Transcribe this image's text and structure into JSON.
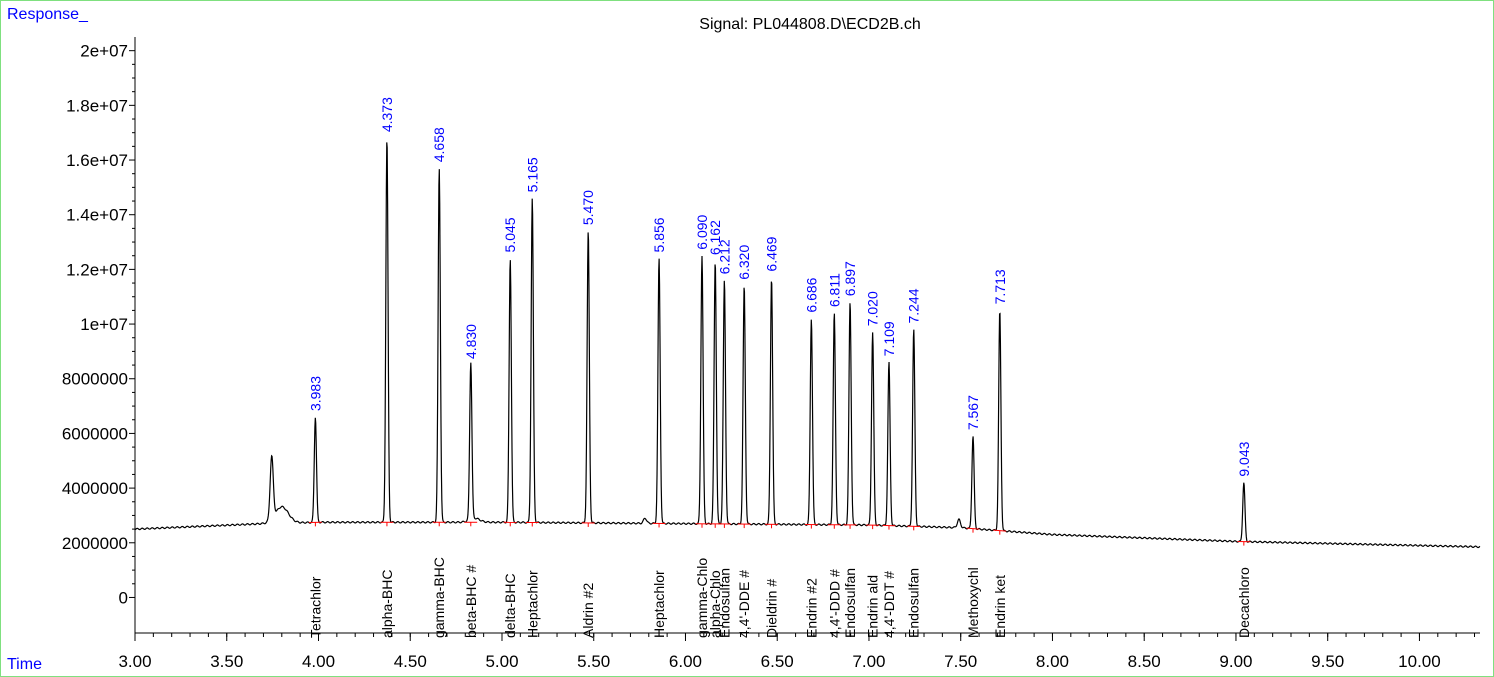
{
  "chart_data": {
    "type": "line",
    "title": "Signal: PL044808.D\\ECD2B.ch",
    "ylabel": "Response_",
    "xlabel": "Time",
    "xlim": [
      3.0,
      10.33
    ],
    "ylim": [
      -1300000,
      20500000
    ],
    "x_ticks": [
      "3.00",
      "3.50",
      "4.00",
      "4.50",
      "5.00",
      "5.50",
      "6.00",
      "6.50",
      "7.00",
      "7.50",
      "8.00",
      "8.50",
      "9.00",
      "9.50",
      "10.00"
    ],
    "y_ticks": [
      "0",
      "2000000",
      "4000000",
      "6000000",
      "8000000",
      "1e+07",
      "1.2e+07",
      "1.4e+07",
      "1.6e+07",
      "1.8e+07",
      "2e+07"
    ],
    "baseline": [
      [
        3.0,
        2500000
      ],
      [
        3.7,
        2700000
      ],
      [
        4.0,
        2750000
      ],
      [
        5.0,
        2750000
      ],
      [
        6.0,
        2700000
      ],
      [
        7.0,
        2650000
      ],
      [
        7.5,
        2550000
      ],
      [
        8.0,
        2300000
      ],
      [
        9.0,
        2050000
      ],
      [
        10.33,
        1850000
      ]
    ],
    "peaks": [
      {
        "rt": "3.983",
        "x": 3.983,
        "height": 6600000,
        "compound": "Tetrachlor"
      },
      {
        "rt": "4.373",
        "x": 4.373,
        "height": 16800000,
        "compound": "alpha-BHC"
      },
      {
        "rt": "4.658",
        "x": 4.658,
        "height": 15700000,
        "compound": "gamma-BHC"
      },
      {
        "rt": "4.830",
        "x": 4.83,
        "height": 8500000,
        "compound": "beta-BHC #"
      },
      {
        "rt": "5.045",
        "x": 5.045,
        "height": 12400000,
        "compound": "delta-BHC"
      },
      {
        "rt": "5.165",
        "x": 5.165,
        "height": 14600000,
        "compound": "Heptachlor"
      },
      {
        "rt": "5.470",
        "x": 5.47,
        "height": 13400000,
        "compound": "Aldrin #2"
      },
      {
        "rt": "5.856",
        "x": 5.856,
        "height": 12400000,
        "compound": "Heptachlor"
      },
      {
        "rt": "6.090",
        "x": 6.09,
        "height": 12500000,
        "compound": "gamma-Chlo"
      },
      {
        "rt": "6.162",
        "x": 6.162,
        "height": 12300000,
        "compound": "alpha-Chlo"
      },
      {
        "rt": "6.212",
        "x": 6.212,
        "height": 11600000,
        "compound": "Endosulfan"
      },
      {
        "rt": "6.320",
        "x": 6.32,
        "height": 11400000,
        "compound": "4,4'-DDE #"
      },
      {
        "rt": "6.469",
        "x": 6.469,
        "height": 11700000,
        "compound": "Dieldrin #"
      },
      {
        "rt": "6.686",
        "x": 6.686,
        "height": 10200000,
        "compound": "Endrin #2"
      },
      {
        "rt": "6.811",
        "x": 6.811,
        "height": 10400000,
        "compound": "4,4'-DDD #"
      },
      {
        "rt": "6.897",
        "x": 6.897,
        "height": 10800000,
        "compound": "Endosulfan"
      },
      {
        "rt": "7.020",
        "x": 7.02,
        "height": 9700000,
        "compound": "Endrin ald"
      },
      {
        "rt": "7.109",
        "x": 7.109,
        "height": 8600000,
        "compound": "4,4'-DDT #"
      },
      {
        "rt": "7.244",
        "x": 7.244,
        "height": 9800000,
        "compound": "Endosulfan"
      },
      {
        "rt": "7.567",
        "x": 7.567,
        "height": 5900000,
        "compound": "Methoxychl"
      },
      {
        "rt": "7.713",
        "x": 7.713,
        "height": 10500000,
        "compound": "Endrin ket"
      },
      {
        "rt": "9.043",
        "x": 9.043,
        "height": 4200000,
        "compound": "Decachloro"
      }
    ],
    "unlabeled_peaks": [
      {
        "x": 3.745,
        "height": 5000000
      },
      {
        "x": 5.78,
        "height": 2900000
      },
      {
        "x": 7.49,
        "height": 2850000
      }
    ],
    "colors": {
      "trace": "#000000",
      "baseline_segments": "#ff0000",
      "rt_labels": "#0000ff",
      "axis_labels": "#0000ff",
      "frame": "#7fe07f"
    }
  }
}
